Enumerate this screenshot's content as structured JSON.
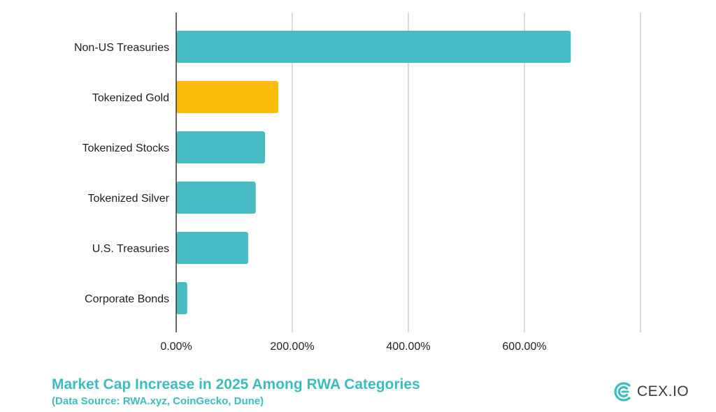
{
  "chart_data": {
    "type": "bar",
    "orientation": "horizontal",
    "categories": [
      "Non-US Treasuries",
      "Tokenized Gold",
      "Tokenized Stocks",
      "Tokenized Silver",
      "U.S. Treasuries",
      "Corporate Bonds"
    ],
    "values": [
      680,
      176,
      153,
      137,
      124,
      19
    ],
    "bar_colors": [
      "#47bcc4",
      "#fbbd0b",
      "#47bcc4",
      "#47bcc4",
      "#47bcc4",
      "#47bcc4"
    ],
    "xlim": [
      0,
      800
    ],
    "x_ticks": [
      0,
      200,
      400,
      600
    ],
    "x_tick_labels": [
      "0.00%",
      "200.00%",
      "400.00%",
      "600.00%"
    ],
    "grid": "vertical",
    "title": "Market Cap Increase in 2025 Among RWA Categories",
    "subtitle": "(Data Source: RWA.xyz, CoinGecko, Dune)"
  },
  "branding": {
    "logo_text": "CEX.IO",
    "logo_icon": "cex-io-logo-icon",
    "color": "#3bbdc0"
  }
}
